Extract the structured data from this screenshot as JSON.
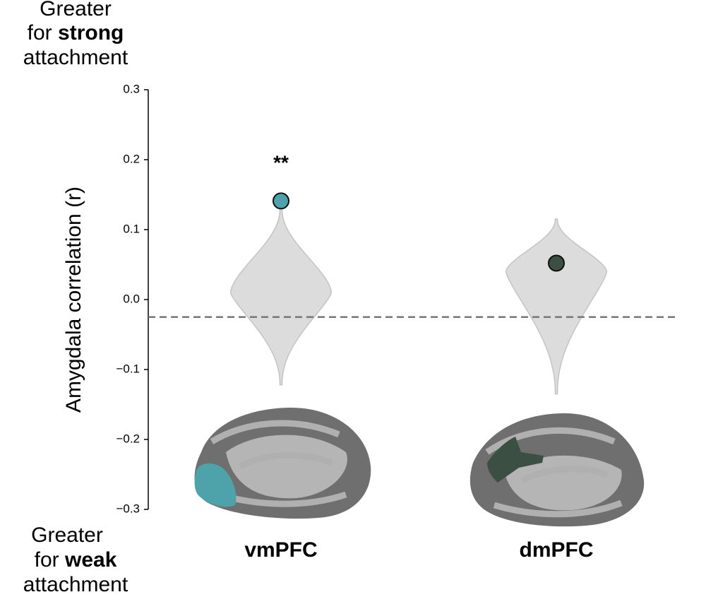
{
  "chart_data": {
    "type": "violin",
    "ylabel": "Amygdala correlation (r)",
    "top_note": {
      "line1": "Greater",
      "line2_a": "for",
      "line2_b": "strong",
      "line3": "attachment"
    },
    "bottom_note": {
      "line1": "Greater",
      "line2_a": "for",
      "line2_b": "weak",
      "line3": "attachment"
    },
    "categories": [
      "vmPFC",
      "dmPFC"
    ],
    "series": [
      {
        "values": [
          0.141,
          0.052
        ],
        "colors": [
          "#4ea3ab",
          "#3b4f43"
        ]
      }
    ],
    "violins": [
      {
        "min": -0.122,
        "max": 0.13,
        "peak": 0.01
      },
      {
        "min": -0.135,
        "max": 0.115,
        "peak": 0.04
      }
    ],
    "violin_color": "#dcdcdc",
    "reference_line": -0.025,
    "annotations": [
      {
        "text": "**",
        "x": "vmPFC"
      }
    ],
    "ylim": [
      -0.3,
      0.3
    ],
    "yticks": [
      {
        "value": -0.3,
        "label": "−0.3"
      },
      {
        "value": -0.2,
        "label": "−0.2"
      },
      {
        "value": -0.1,
        "label": "−0.1"
      },
      {
        "value": 0,
        "label": "0.0"
      },
      0.1,
      0.2,
      0.3
    ]
  }
}
